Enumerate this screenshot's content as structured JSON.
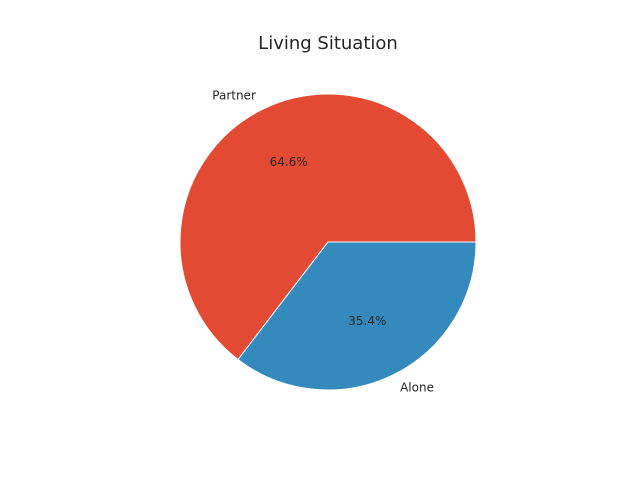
{
  "chart_data": {
    "type": "pie",
    "title": "Living Situation",
    "categories": [
      "Partner",
      "Alone"
    ],
    "values": [
      64.6,
      35.4
    ],
    "percent_labels": [
      "64.6%",
      "35.4%"
    ],
    "colors": [
      "#E24A33",
      "#348ABD"
    ],
    "start_angle_deg": 0,
    "direction": "counterclockwise",
    "legend": "none"
  }
}
